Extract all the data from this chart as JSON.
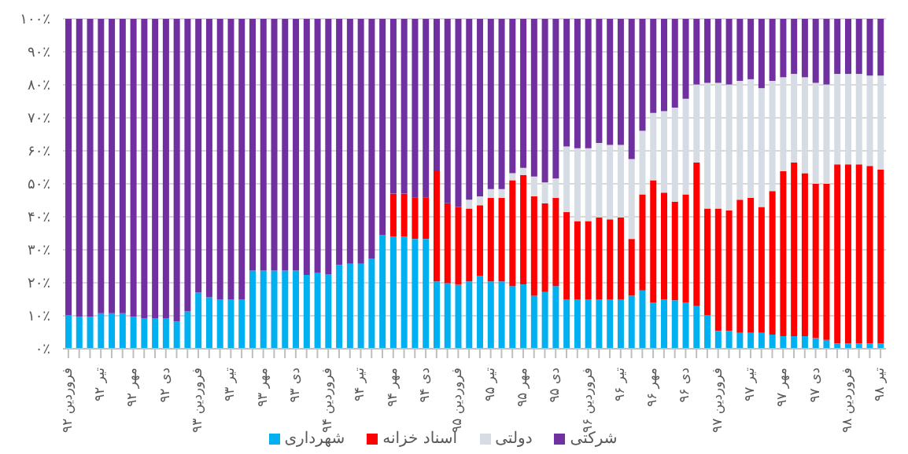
{
  "chart_data": {
    "type": "bar",
    "stacked": true,
    "grid": "y",
    "legend": "bottom",
    "categories": [
      "فروردین ۹۲",
      null,
      null,
      "تیر ۹۲",
      null,
      null,
      "مهر ۹۲",
      null,
      null,
      "دی ۹۲",
      null,
      null,
      "فروردین ۹۳",
      null,
      null,
      "تیر ۹۳",
      null,
      null,
      "مهر ۹۳",
      null,
      null,
      "دی ۹۳",
      null,
      null,
      "فروردین ۹۴",
      null,
      null,
      "تیر ۹۴",
      null,
      null,
      "مهر ۹۴",
      null,
      null,
      "دی ۹۴",
      null,
      null,
      "فروردین ۹۵",
      null,
      null,
      "تیر ۹۵",
      null,
      null,
      "مهر ۹۵",
      null,
      null,
      "دی ۹۵",
      null,
      null,
      "فروردین ۹۶",
      null,
      null,
      "تیر ۹۶",
      null,
      null,
      "مهر ۹۶",
      null,
      null,
      "دی ۹۶",
      null,
      null,
      "فروردین ۹۷",
      null,
      null,
      "تیر ۹۷",
      null,
      null,
      "مهر ۹۷",
      null,
      null,
      "دی ۹۷",
      null,
      null,
      "فروردین ۹۸",
      null,
      null,
      "تیر ۹۸"
    ],
    "ylim": [
      0,
      100
    ],
    "yticks": [
      {
        "value": 0,
        "label": "۰٪"
      },
      {
        "value": 10,
        "label": "۱۰٪"
      },
      {
        "value": 20,
        "label": "۲۰٪"
      },
      {
        "value": 30,
        "label": "۳۰٪"
      },
      {
        "value": 40,
        "label": "۴۰٪"
      },
      {
        "value": 50,
        "label": "۵۰٪"
      },
      {
        "value": 60,
        "label": "۶۰٪"
      },
      {
        "value": 70,
        "label": "۷۰٪"
      },
      {
        "value": 80,
        "label": "۸۰٪"
      },
      {
        "value": 90,
        "label": "۹۰٪"
      },
      {
        "value": 100,
        "label": "۱۰۰٪"
      }
    ],
    "series": [
      {
        "name": "شهرداری",
        "color": "#00b0f0",
        "values": [
          10.2,
          9.7,
          9.7,
          10.8,
          10.8,
          10.8,
          9.7,
          9.3,
          9.3,
          9.3,
          8.2,
          11.3,
          17,
          15.6,
          15,
          15,
          15,
          23.7,
          23.7,
          23.7,
          23.7,
          23.7,
          22.4,
          23.1,
          22.6,
          25.4,
          25.8,
          25.8,
          27.4,
          34.4,
          34,
          34,
          33.3,
          33.3,
          20.4,
          19.9,
          19.4,
          20.4,
          22,
          20.4,
          20.4,
          19,
          19.5,
          16.1,
          17.2,
          19,
          15,
          15,
          15,
          15,
          15,
          15,
          16.1,
          17.7,
          14,
          15,
          14.7,
          14,
          12.9,
          10.2,
          5.4,
          5.4,
          4.8,
          4.8,
          4.8,
          4.3,
          3.8,
          3.8,
          3.8,
          3.2,
          2.7,
          1.6,
          1.6,
          1.6,
          1.6,
          1.6
        ]
      },
      {
        "name": "اسناد خزانه",
        "color": "#ff0000",
        "values": [
          0,
          0,
          0,
          0,
          0,
          0,
          0,
          0,
          0,
          0,
          0,
          0,
          0,
          0,
          0,
          0,
          0,
          0,
          0,
          0,
          0,
          0,
          0,
          0,
          0,
          0,
          0,
          0,
          0,
          0,
          13,
          13,
          12.6,
          12.6,
          33.4,
          24.2,
          23.6,
          22.1,
          21.5,
          25.3,
          25.3,
          32.1,
          33.2,
          30.1,
          26.9,
          26.7,
          26.4,
          23.7,
          23.7,
          24.8,
          24.2,
          24.8,
          17.2,
          29.1,
          37.1,
          32.3,
          29.9,
          32.8,
          43.6,
          32.3,
          37.1,
          36.5,
          40.4,
          40.9,
          38.2,
          43.5,
          50,
          52.7,
          49.4,
          46.8,
          47.3,
          54.3,
          54.3,
          54.3,
          53.8,
          52.7
        ]
      },
      {
        "name": "دولتی",
        "color": "#d6dce4",
        "values": [
          0,
          0,
          0,
          0,
          0,
          0,
          0,
          0,
          0,
          0,
          0,
          0,
          0,
          0,
          0,
          0,
          0,
          0,
          0,
          0,
          0,
          0,
          0,
          0,
          0,
          0,
          0,
          0,
          0,
          0,
          0,
          0,
          0,
          0,
          0,
          0,
          0,
          2.7,
          2.7,
          2.7,
          2.7,
          2.1,
          2.1,
          6,
          6.3,
          5.9,
          19.9,
          22.1,
          22.1,
          22.6,
          22.6,
          22,
          24.2,
          19.3,
          20.4,
          24.7,
          28.5,
          29,
          23.6,
          38.1,
          38.1,
          38.2,
          36,
          36,
          36,
          33.4,
          28.5,
          26.8,
          29.1,
          30.6,
          30.1,
          27.4,
          27.4,
          27.4,
          27.4,
          28.5
        ]
      },
      {
        "name": "شرکتی",
        "color": "#7030a0",
        "values": [
          89.8,
          90.3,
          90.3,
          89.2,
          89.2,
          89.2,
          90.3,
          90.7,
          90.7,
          90.7,
          91.8,
          88.7,
          83,
          84.4,
          85,
          85,
          85,
          76.3,
          76.3,
          76.3,
          76.3,
          76.3,
          77.6,
          76.9,
          77.4,
          74.6,
          74.2,
          74.2,
          72.6,
          65.6,
          53,
          53,
          54.1,
          54.1,
          46.2,
          55.9,
          57,
          54.8,
          53.8,
          51.6,
          51.6,
          46.8,
          45.2,
          47.8,
          49.6,
          48.4,
          38.7,
          39.2,
          39.2,
          37.6,
          38.2,
          38.2,
          42.5,
          33.9,
          28.5,
          28,
          26.9,
          24.2,
          19.9,
          19.4,
          19.4,
          19.9,
          18.8,
          18.3,
          21,
          18.8,
          17.7,
          16.7,
          17.7,
          19.4,
          19.9,
          16.7,
          16.7,
          16.7,
          17.2,
          17.2
        ]
      }
    ]
  }
}
